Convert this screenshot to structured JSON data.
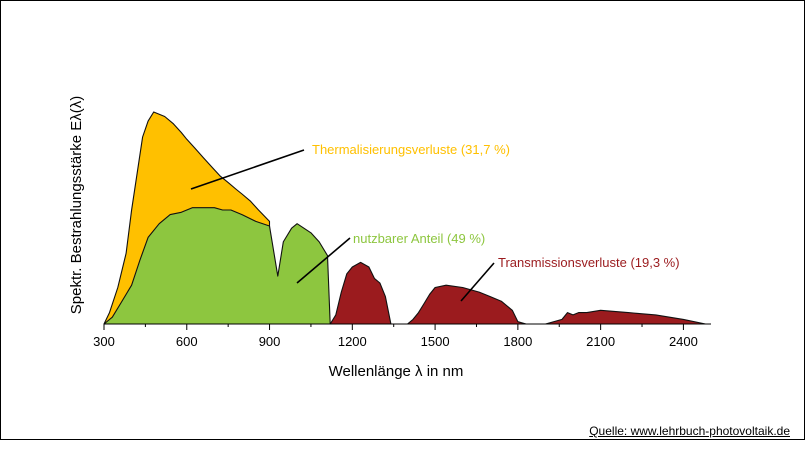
{
  "chart_data": {
    "type": "area",
    "title": "",
    "xlabel": "Wellenlänge  λ in nm",
    "ylabel": "Spektr. Bestrahlungsstärke  Eλ(λ)",
    "xlim": [
      300,
      2500
    ],
    "xticks": [
      300,
      600,
      900,
      1200,
      1500,
      1800,
      2100,
      2400
    ],
    "ylim": [
      0,
      1
    ],
    "grid": false,
    "series": [
      {
        "name": "Thermalisierungsverluste (31,7 %)",
        "color": "#ffc000",
        "x": [
          300,
          320,
          350,
          380,
          400,
          420,
          440,
          460,
          480,
          500,
          520,
          550,
          580,
          600,
          630,
          660,
          690,
          720,
          750,
          780,
          800,
          830,
          860,
          900
        ],
        "y": [
          0.0,
          0.05,
          0.16,
          0.31,
          0.5,
          0.66,
          0.82,
          0.89,
          0.93,
          0.92,
          0.91,
          0.88,
          0.84,
          0.81,
          0.77,
          0.73,
          0.69,
          0.65,
          0.62,
          0.59,
          0.57,
          0.54,
          0.5,
          0.45
        ]
      },
      {
        "name": "nutzbarer Anteil (49 %)",
        "color": "#8dc63f",
        "x": [
          300,
          330,
          360,
          400,
          430,
          460,
          500,
          540,
          580,
          620,
          660,
          700,
          730,
          760,
          800,
          850,
          900,
          930,
          950,
          980,
          1000,
          1050,
          1080,
          1110,
          1120
        ],
        "y": [
          0.0,
          0.03,
          0.09,
          0.17,
          0.28,
          0.38,
          0.44,
          0.48,
          0.49,
          0.51,
          0.51,
          0.51,
          0.5,
          0.5,
          0.48,
          0.45,
          0.43,
          0.21,
          0.36,
          0.42,
          0.44,
          0.4,
          0.36,
          0.3,
          0.0
        ]
      },
      {
        "name": "Transmissionsverluste (19,3 %)",
        "color": "#9b1b1e",
        "x": [
          1120,
          1140,
          1160,
          1180,
          1200,
          1230,
          1260,
          1280,
          1300,
          1320,
          1340,
          1360,
          1380,
          1400,
          1420,
          1440,
          1460,
          1480,
          1500,
          1540,
          1600,
          1660,
          1700,
          1740,
          1780,
          1800,
          1830,
          1900,
          1960,
          1980,
          2000,
          2020,
          2050,
          2100,
          2200,
          2300,
          2400,
          2480
        ],
        "y": [
          0.0,
          0.04,
          0.14,
          0.22,
          0.25,
          0.27,
          0.25,
          0.2,
          0.18,
          0.12,
          0.0,
          0.0,
          0.0,
          0.0,
          0.02,
          0.05,
          0.09,
          0.13,
          0.16,
          0.17,
          0.16,
          0.14,
          0.12,
          0.1,
          0.06,
          0.01,
          0.0,
          0.0,
          0.02,
          0.05,
          0.04,
          0.05,
          0.05,
          0.06,
          0.05,
          0.04,
          0.02,
          0.0
        ]
      }
    ],
    "annotations": [
      {
        "text": "Thermalisierungsverluste (31,7 %)",
        "color": "#ffc000"
      },
      {
        "text": "nutzbarer Anteil (49 %)",
        "color": "#8dc63f"
      },
      {
        "text": "Transmissionsverluste (19,3 %)",
        "color": "#9b1b1e"
      }
    ]
  },
  "source": "Quelle: www.lehrbuch-photovoltaik.de"
}
